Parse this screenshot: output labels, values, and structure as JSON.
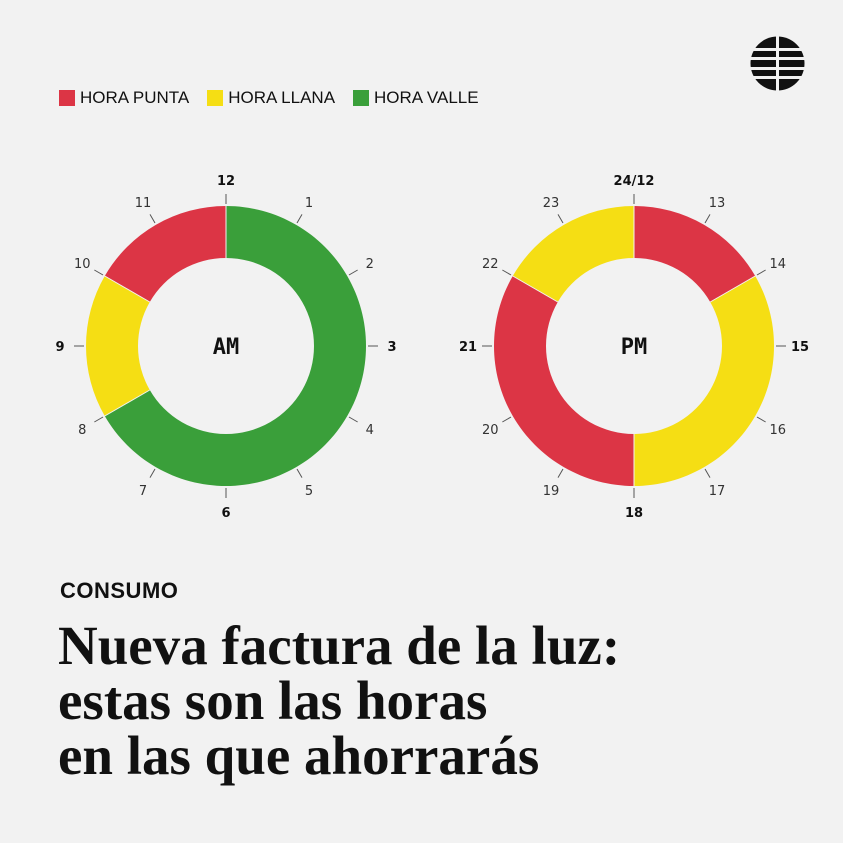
{
  "colors": {
    "punta": "#dc3545",
    "llana": "#f5de14",
    "valle": "#3a9f3a",
    "text": "#111111",
    "background": "#f2f2f2"
  },
  "logo": {
    "icon": "globe-logo-icon"
  },
  "legend": [
    {
      "label": "HORA PUNTA",
      "key": "punta"
    },
    {
      "label": "HORA LLANA",
      "key": "llana"
    },
    {
      "label": "HORA VALLE",
      "key": "valle"
    }
  ],
  "chart_data": [
    {
      "type": "pie",
      "variant": "donut",
      "center_label": "AM",
      "segments": [
        {
          "from": 0,
          "to": 8,
          "category": "valle"
        },
        {
          "from": 8,
          "to": 10,
          "category": "llana"
        },
        {
          "from": 10,
          "to": 12,
          "category": "punta"
        }
      ],
      "hour_labels": [
        "12",
        "1",
        "2",
        "3",
        "4",
        "5",
        "6",
        "7",
        "8",
        "9",
        "10",
        "11"
      ],
      "bold_labels": [
        "12",
        "3",
        "6",
        "9"
      ]
    },
    {
      "type": "pie",
      "variant": "donut",
      "center_label": "PM",
      "segments": [
        {
          "from": 12,
          "to": 14,
          "category": "punta"
        },
        {
          "from": 14,
          "to": 18,
          "category": "llana"
        },
        {
          "from": 18,
          "to": 22,
          "category": "punta"
        },
        {
          "from": 22,
          "to": 24,
          "category": "llana"
        }
      ],
      "hour_labels": [
        "24/12",
        "13",
        "14",
        "15",
        "16",
        "17",
        "18",
        "19",
        "20",
        "21",
        "22",
        "23"
      ],
      "bold_labels": [
        "24/12",
        "15",
        "18",
        "21"
      ]
    }
  ],
  "section": "CONSUMO",
  "headline": [
    "Nueva factura de la luz:",
    "estas son las horas",
    "en las que ahorrarás"
  ]
}
